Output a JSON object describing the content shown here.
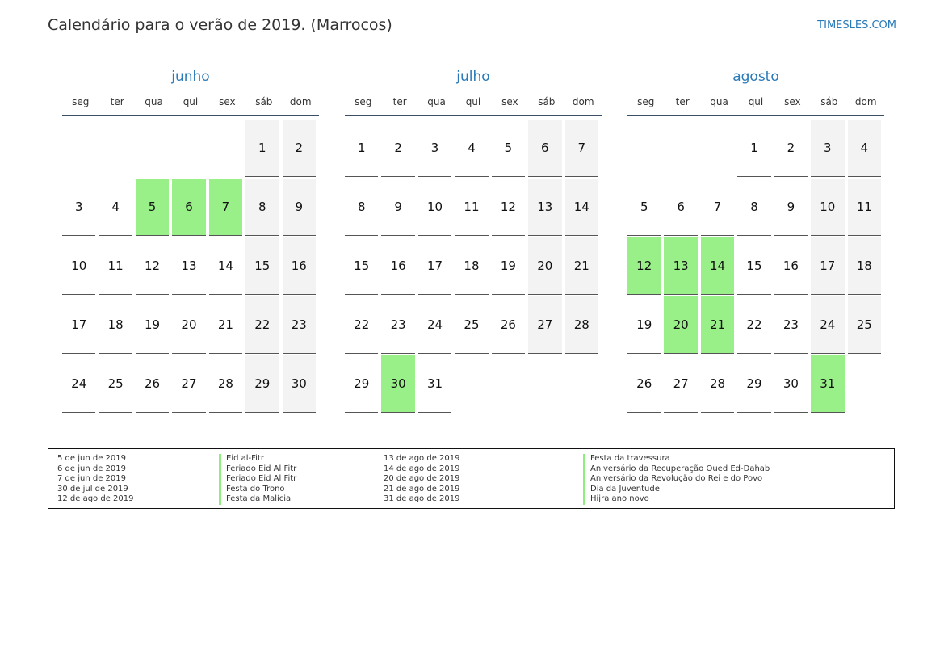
{
  "header": {
    "title": "Calendário para o verão de 2019. (Marrocos)",
    "brand": "TIMESLES.COM"
  },
  "weekdays": [
    "seg",
    "ter",
    "qua",
    "qui",
    "sex",
    "sáb",
    "dom"
  ],
  "months": [
    {
      "name": "junho",
      "start_offset": 5,
      "days": 30,
      "holidays": [
        5,
        6,
        7
      ]
    },
    {
      "name": "julho",
      "start_offset": 0,
      "days": 31,
      "holidays": [
        30
      ]
    },
    {
      "name": "agosto",
      "start_offset": 3,
      "days": 31,
      "holidays": [
        12,
        13,
        14,
        20,
        21,
        31
      ]
    }
  ],
  "colors": {
    "holiday": "#99f088",
    "weekend": "#f3f3f3",
    "accent": "#2a7ab8"
  },
  "legend": {
    "left": [
      {
        "date": "5 de jun de 2019",
        "name": "Eid al-Fitr"
      },
      {
        "date": "6 de jun de 2019",
        "name": "Feriado Eid Al Fitr"
      },
      {
        "date": "7 de jun de 2019",
        "name": "Feriado Eid Al Fitr"
      },
      {
        "date": "30 de jul de 2019",
        "name": "Festa do Trono"
      },
      {
        "date": "12 de ago de 2019",
        "name": "Festa da Malícia"
      }
    ],
    "right": [
      {
        "date": "13 de ago de 2019",
        "name": "Festa da travessura"
      },
      {
        "date": "14 de ago de 2019",
        "name": "Aniversário da Recuperação Oued Ed-Dahab"
      },
      {
        "date": "20 de ago de 2019",
        "name": "Aniversário da Revolução do Rei e do Povo"
      },
      {
        "date": "21 de ago de 2019",
        "name": "Dia da Juventude"
      },
      {
        "date": "31 de ago de 2019",
        "name": "Hijra ano novo"
      }
    ]
  }
}
